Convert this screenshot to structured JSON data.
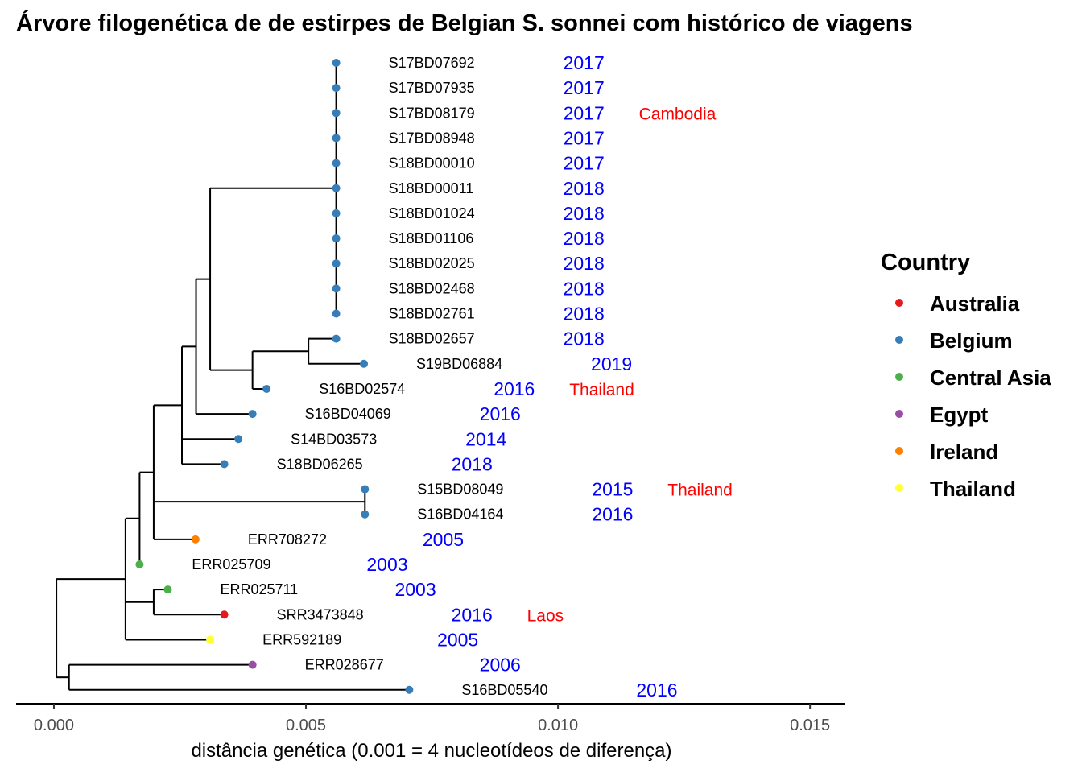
{
  "chart_data": {
    "type": "phylogenetic-tree",
    "title": "Árvore filogenética de de estirpes de Belgian S. sonnei com histórico de viagens",
    "xlabel": "distância genética (0.001 = 4 nucleotídeos de diferença)",
    "xlim": [
      -0.00075,
      0.0157
    ],
    "x_ticks": [
      {
        "value": 0.0,
        "label": "0.000"
      },
      {
        "value": 0.005,
        "label": "0.005"
      },
      {
        "value": 0.01,
        "label": "0.010"
      },
      {
        "value": 0.015,
        "label": "0.015"
      }
    ],
    "legend": {
      "title": "Country",
      "items": [
        {
          "name": "Australia",
          "color": "#e41a1c"
        },
        {
          "name": "Belgium",
          "color": "#377eb8"
        },
        {
          "name": "Central Asia",
          "color": "#4daf4a"
        },
        {
          "name": "Egypt",
          "color": "#984ea3"
        },
        {
          "name": "Ireland",
          "color": "#ff7f00"
        },
        {
          "name": "Thailand",
          "color": "#ffff33"
        }
      ]
    },
    "tips": [
      {
        "id": "S17BD07692",
        "x": 0.0056,
        "country": "Belgium",
        "year": "2017",
        "travel": ""
      },
      {
        "id": "S17BD07935",
        "x": 0.0056,
        "country": "Belgium",
        "year": "2017",
        "travel": ""
      },
      {
        "id": "S17BD08179",
        "x": 0.0056,
        "country": "Belgium",
        "year": "2017",
        "travel": "Cambodia"
      },
      {
        "id": "S17BD08948",
        "x": 0.0056,
        "country": "Belgium",
        "year": "2017",
        "travel": ""
      },
      {
        "id": "S18BD00010",
        "x": 0.0056,
        "country": "Belgium",
        "year": "2017",
        "travel": ""
      },
      {
        "id": "S18BD00011",
        "x": 0.0056,
        "country": "Belgium",
        "year": "2018",
        "travel": ""
      },
      {
        "id": "S18BD01024",
        "x": 0.0056,
        "country": "Belgium",
        "year": "2018",
        "travel": ""
      },
      {
        "id": "S18BD01106",
        "x": 0.0056,
        "country": "Belgium",
        "year": "2018",
        "travel": ""
      },
      {
        "id": "S18BD02025",
        "x": 0.0056,
        "country": "Belgium",
        "year": "2018",
        "travel": ""
      },
      {
        "id": "S18BD02468",
        "x": 0.0056,
        "country": "Belgium",
        "year": "2018",
        "travel": ""
      },
      {
        "id": "S18BD02761",
        "x": 0.0056,
        "country": "Belgium",
        "year": "2018",
        "travel": ""
      },
      {
        "id": "S18BD02657",
        "x": 0.0056,
        "country": "Belgium",
        "year": "2018",
        "travel": ""
      },
      {
        "id": "S19BD06884",
        "x": 0.00615,
        "country": "Belgium",
        "year": "2019",
        "travel": ""
      },
      {
        "id": "S16BD02574",
        "x": 0.00422,
        "country": "Belgium",
        "year": "2016",
        "travel": "Thailand"
      },
      {
        "id": "S16BD04069",
        "x": 0.00394,
        "country": "Belgium",
        "year": "2016",
        "travel": ""
      },
      {
        "id": "S14BD03573",
        "x": 0.00366,
        "country": "Belgium",
        "year": "2014",
        "travel": ""
      },
      {
        "id": "S18BD06265",
        "x": 0.00338,
        "country": "Belgium",
        "year": "2018",
        "travel": ""
      },
      {
        "id": "S15BD08049",
        "x": 0.00617,
        "country": "Belgium",
        "year": "2015",
        "travel": "Thailand"
      },
      {
        "id": "S16BD04164",
        "x": 0.00617,
        "country": "Belgium",
        "year": "2016",
        "travel": ""
      },
      {
        "id": "ERR708272",
        "x": 0.00281,
        "country": "Ireland",
        "year": "2005",
        "travel": ""
      },
      {
        "id": "ERR025709",
        "x": 0.0017,
        "country": "Central Asia",
        "year": "2003",
        "travel": ""
      },
      {
        "id": "ERR025711",
        "x": 0.00226,
        "country": "Central Asia",
        "year": "2003",
        "travel": ""
      },
      {
        "id": "SRR3473848",
        "x": 0.00338,
        "country": "Australia",
        "year": "2016",
        "travel": "Laos"
      },
      {
        "id": "ERR592189",
        "x": 0.0031,
        "country": "Thailand",
        "year": "2005",
        "travel": ""
      },
      {
        "id": "ERR028677",
        "x": 0.00394,
        "country": "Egypt",
        "year": "2006",
        "travel": ""
      },
      {
        "id": "S16BD05540",
        "x": 0.00705,
        "country": "Belgium",
        "year": "2016",
        "travel": ""
      }
    ],
    "internal_nodes": {
      "root": {
        "x": 5e-05
      },
      "nEgyptS16": {
        "x": 0.0003,
        "parent": "root"
      },
      "nMain": {
        "x": 0.00142,
        "parent": "root"
      },
      "nCA2": {
        "x": 0.00198,
        "parent": "nMain"
      },
      "nA": {
        "x": 0.0017,
        "parent": "nMain"
      },
      "nB": {
        "x": 0.00198,
        "parent": "nA"
      },
      "nThai": {
        "x": 0.00617,
        "parent": "nB"
      },
      "nC": {
        "x": 0.00254,
        "parent": "nB"
      },
      "nD": {
        "x": 0.00282,
        "parent": "nC"
      },
      "nE": {
        "x": 0.0031,
        "parent": "nD"
      },
      "nF": {
        "x": 0.00394,
        "parent": "nE"
      },
      "nG": {
        "x": 0.00505,
        "parent": "nF"
      },
      "nPoly": {
        "x": 0.0056,
        "parent": "nE"
      }
    },
    "edges": [
      [
        "root",
        "nEgyptS16"
      ],
      [
        "root",
        "nMain"
      ],
      [
        "nEgyptS16",
        "ERR028677"
      ],
      [
        "nEgyptS16",
        "S16BD05540"
      ],
      [
        "nMain",
        "nA"
      ],
      [
        "nMain",
        "nCA2"
      ],
      [
        "nMain",
        "ERR592189"
      ],
      [
        "nCA2",
        "ERR025711"
      ],
      [
        "nCA2",
        "SRR3473848"
      ],
      [
        "nA",
        "nB"
      ],
      [
        "nA",
        "ERR025709"
      ],
      [
        "nB",
        "nC"
      ],
      [
        "nB",
        "nThai"
      ],
      [
        "nB",
        "ERR708272"
      ],
      [
        "nThai",
        "S15BD08049"
      ],
      [
        "nThai",
        "S16BD04164"
      ],
      [
        "nC",
        "nD"
      ],
      [
        "nC",
        "S14BD03573"
      ],
      [
        "nC",
        "S18BD06265"
      ],
      [
        "nD",
        "nE"
      ],
      [
        "nD",
        "S16BD04069"
      ],
      [
        "nE",
        "nPoly"
      ],
      [
        "nE",
        "nF"
      ],
      [
        "nF",
        "nG"
      ],
      [
        "nF",
        "S16BD02574"
      ],
      [
        "nG",
        "S18BD02657"
      ],
      [
        "nG",
        "S19BD06884"
      ],
      [
        "nPoly",
        "S17BD07692"
      ],
      [
        "nPoly",
        "S17BD07935"
      ],
      [
        "nPoly",
        "S17BD08179"
      ],
      [
        "nPoly",
        "S17BD08948"
      ],
      [
        "nPoly",
        "S18BD00010"
      ],
      [
        "nPoly",
        "S18BD00011"
      ],
      [
        "nPoly",
        "S18BD01024"
      ],
      [
        "nPoly",
        "S18BD01106"
      ],
      [
        "nPoly",
        "S18BD02025"
      ],
      [
        "nPoly",
        "S18BD02468"
      ],
      [
        "nPoly",
        "S18BD02761"
      ]
    ]
  }
}
